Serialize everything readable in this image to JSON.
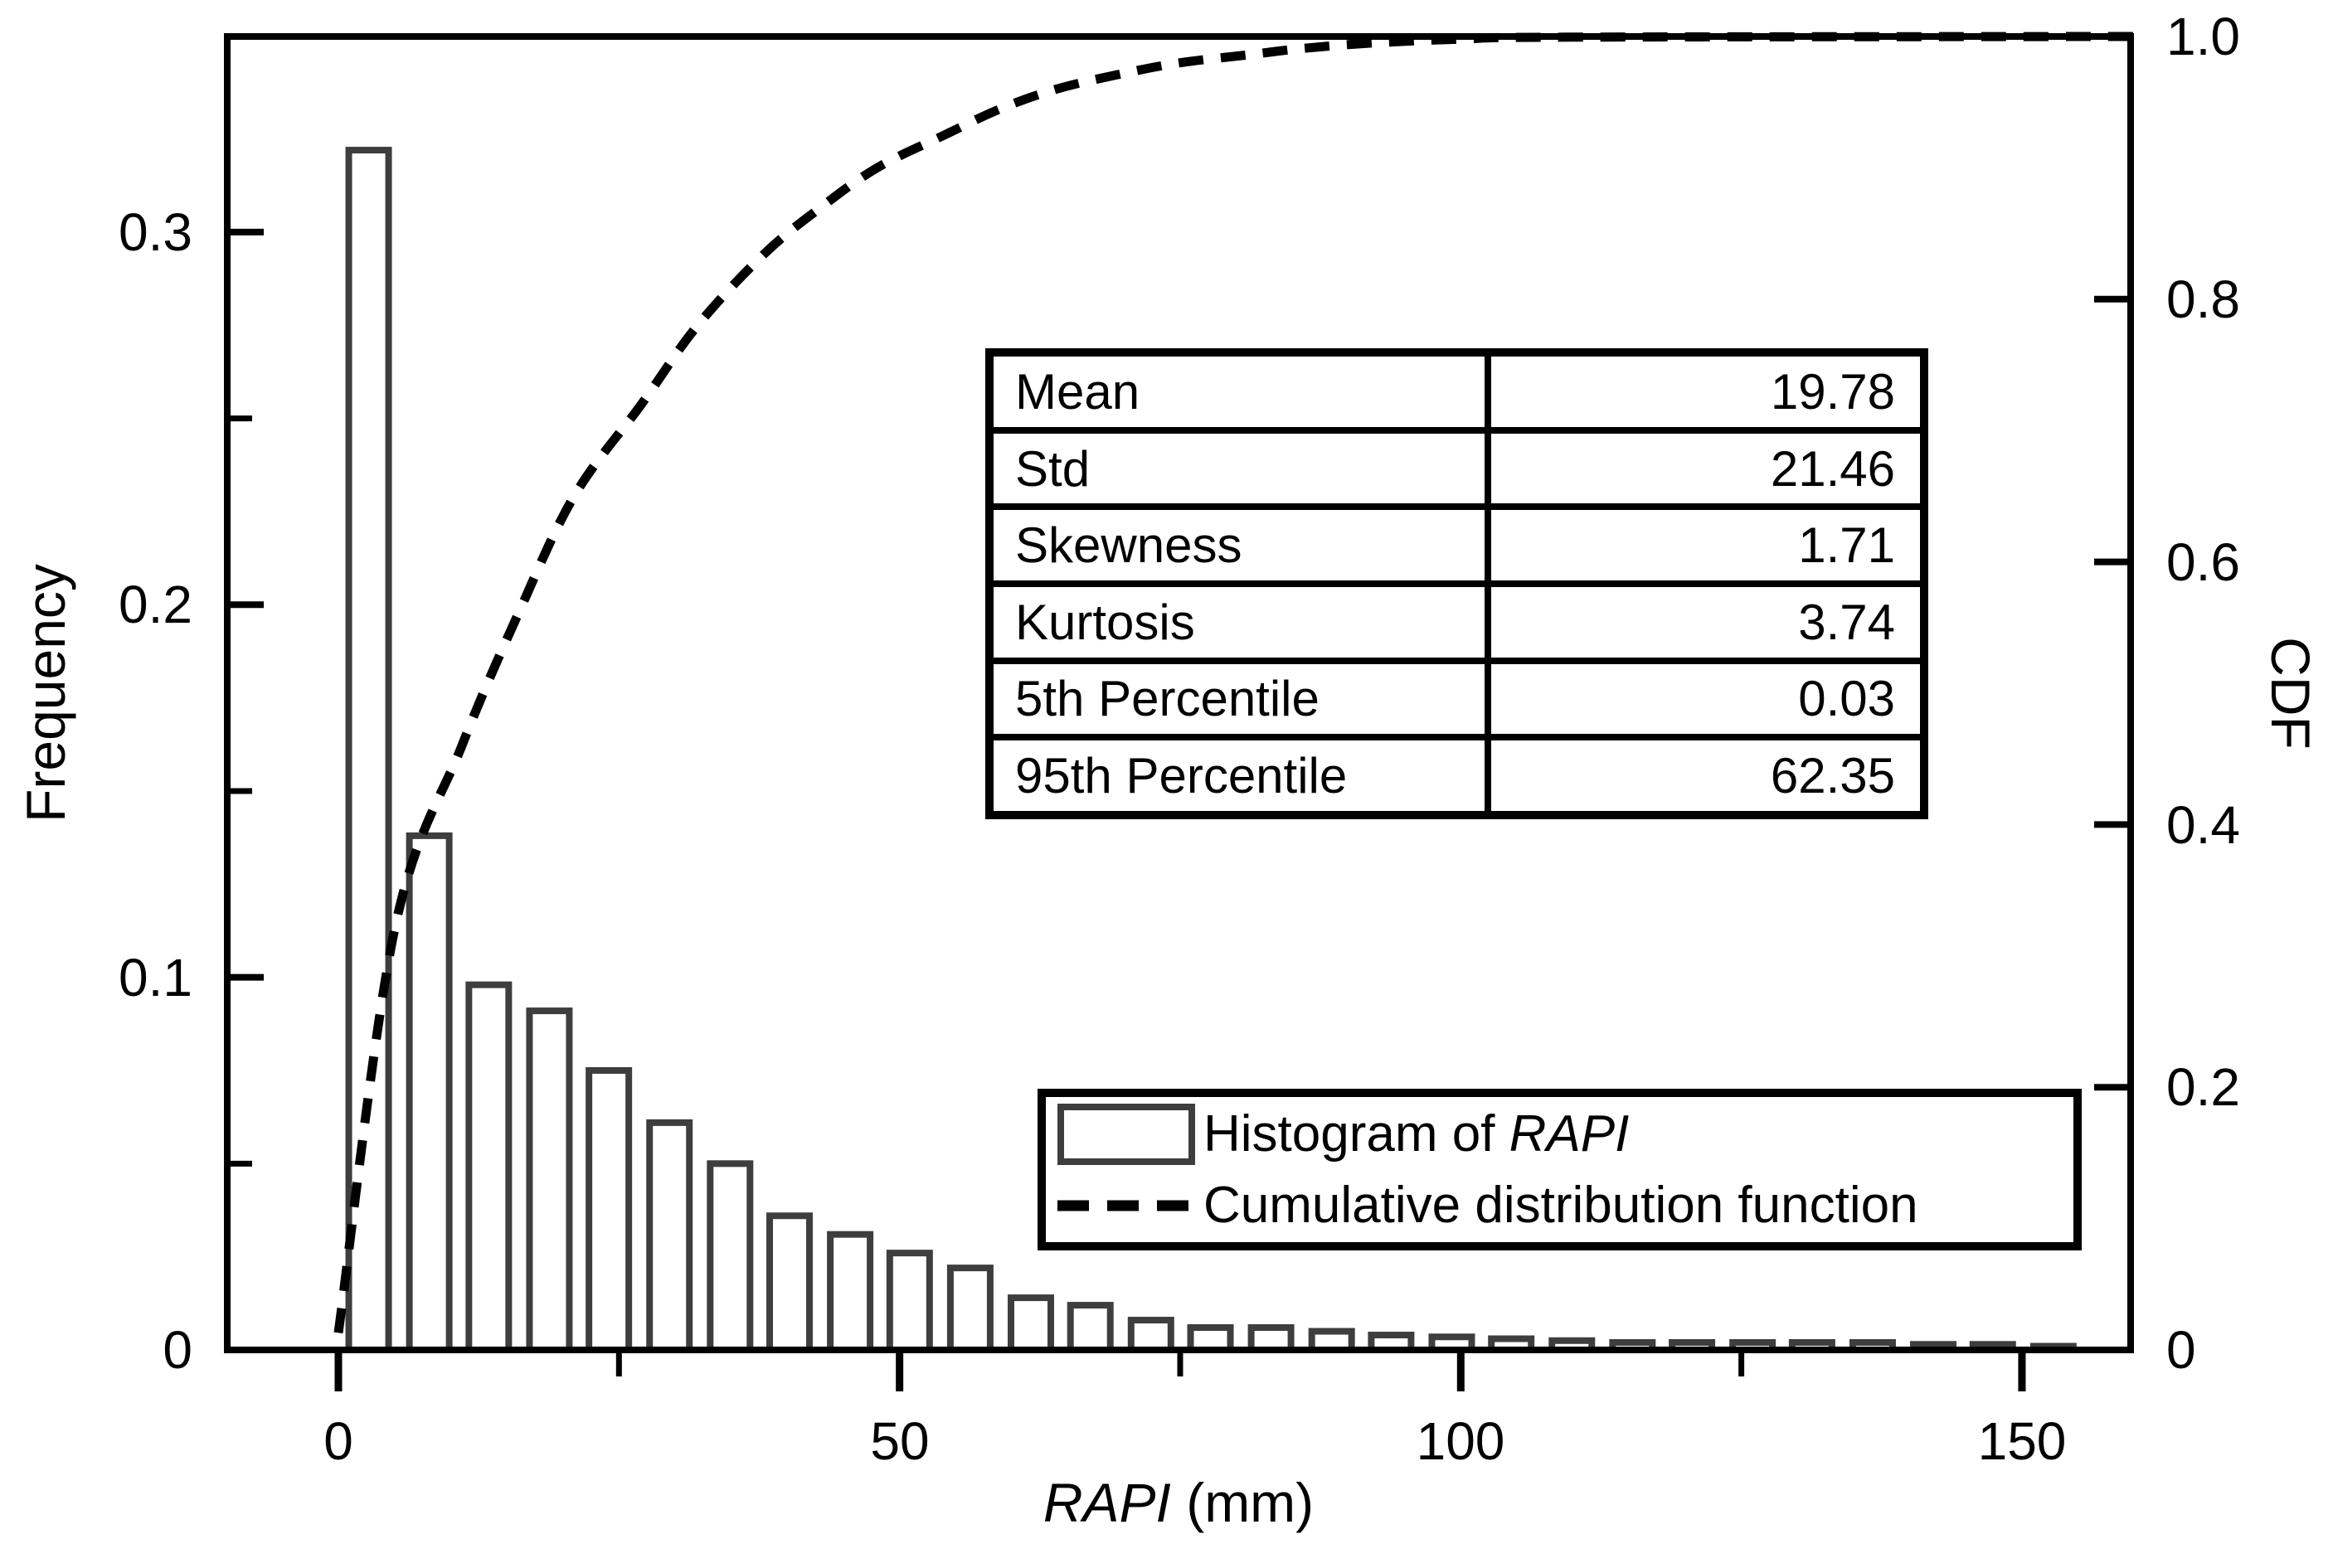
{
  "figure": {
    "background": "#ffffff",
    "ink_color": "#000000",
    "bar_stroke_color": "#3e3e3e"
  },
  "axes": {
    "x": {
      "title_italic": "RAPI",
      "title_rest": " (mm)",
      "range": [
        -9.9,
        159.7
      ],
      "major_ticks": [
        {
          "value": 0,
          "label": "0"
        },
        {
          "value": 50,
          "label": "50"
        },
        {
          "value": 100,
          "label": "100"
        },
        {
          "value": 150,
          "label": "150"
        }
      ],
      "minor_ticks": [
        25,
        75,
        125
      ]
    },
    "y_left": {
      "title": "Frequency",
      "range": [
        0,
        0.3525
      ],
      "major_ticks": [
        {
          "value": 0.3,
          "label": "0.3"
        },
        {
          "value": 0.2,
          "label": "0.2"
        },
        {
          "value": 0.1,
          "label": "0.1"
        },
        {
          "value": 0,
          "label": "0"
        }
      ],
      "minor_ticks": [
        0.25,
        0.15,
        0.05
      ]
    },
    "y_right": {
      "title": "CDF",
      "range": [
        0,
        1.0
      ],
      "major_ticks": [
        {
          "value": 1.0,
          "label": "1.0"
        },
        {
          "value": 0.8,
          "label": "0.8"
        },
        {
          "value": 0.6,
          "label": "0.6"
        },
        {
          "value": 0.4,
          "label": "0.4"
        },
        {
          "value": 0.2,
          "label": "0.2"
        },
        {
          "value": 0,
          "label": "0"
        }
      ]
    }
  },
  "stats_table": {
    "rows": [
      {
        "label": "Mean",
        "value": "19.78"
      },
      {
        "label": "Std",
        "value": "21.46"
      },
      {
        "label": "Skewness",
        "value": "1.71"
      },
      {
        "label": "Kurtosis",
        "value": "3.74"
      },
      {
        "label": "5th Percentile",
        "value": "0.03"
      },
      {
        "label": "95th Percentile",
        "value": "62.35"
      }
    ]
  },
  "legend": {
    "items": [
      {
        "marker": "histogram-swatch",
        "prefix": "Histogram of ",
        "italic": "RAPI"
      },
      {
        "marker": "dashed-line",
        "label": "Cumulative distribution function"
      }
    ]
  },
  "chart_data": [
    {
      "type": "bar",
      "name": "Histogram of RAPI",
      "axis": "left",
      "xlabel": "RAPI (mm)",
      "ylabel": "Frequency",
      "bin_width": 5.36,
      "x_centers": [
        2.7,
        8.1,
        13.4,
        18.8,
        24.1,
        29.5,
        34.9,
        40.2,
        45.6,
        50.9,
        56.3,
        61.7,
        67.0,
        72.4,
        77.7,
        83.1,
        88.5,
        93.8,
        99.2,
        104.5,
        109.9,
        115.3,
        120.6,
        126.0,
        131.3,
        136.7,
        142.1,
        147.4,
        152.8
      ],
      "values": [
        0.322,
        0.138,
        0.098,
        0.091,
        0.075,
        0.061,
        0.05,
        0.036,
        0.031,
        0.026,
        0.022,
        0.014,
        0.012,
        0.008,
        0.006,
        0.006,
        0.005,
        0.004,
        0.0035,
        0.003,
        0.0025,
        0.002,
        0.002,
        0.002,
        0.002,
        0.002,
        0.0015,
        0.0015,
        0.001
      ]
    },
    {
      "type": "line",
      "name": "Cumulative distribution function",
      "axis": "right",
      "style": "dashed",
      "ylabel": "CDF",
      "x": [
        0,
        5,
        11,
        16,
        21,
        27,
        32,
        38,
        43,
        48,
        54,
        59,
        64,
        70,
        75,
        81,
        86,
        92,
        100,
        110,
        160
      ],
      "y": [
        0.013,
        0.32,
        0.46,
        0.56,
        0.65,
        0.72,
        0.78,
        0.835,
        0.87,
        0.9,
        0.925,
        0.945,
        0.96,
        0.972,
        0.98,
        0.986,
        0.991,
        0.995,
        0.998,
        0.9995,
        1.0
      ]
    }
  ]
}
